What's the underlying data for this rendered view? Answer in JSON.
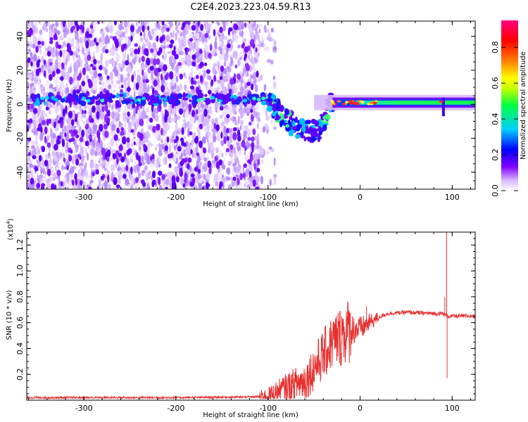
{
  "figure": {
    "title": "C2E4.2023.223.04.59.R13"
  },
  "chart_data": [
    {
      "type": "heatmap",
      "name": "spectrogram",
      "xlabel": "Height of straight line (km)",
      "ylabel": "Frequency (Hz)",
      "xlim": [
        -362,
        125
      ],
      "ylim": [
        -50,
        49
      ],
      "xticks": [
        -300,
        -200,
        -100,
        0,
        100
      ],
      "yticks": [
        -40,
        -20,
        0,
        20,
        40
      ],
      "colorbar": {
        "label": "Normalized spectral amplitude",
        "range": [
          0,
          0.95
        ],
        "ticks": [
          0.0,
          0.2,
          0.4,
          0.6,
          0.8
        ],
        "colormap": [
          "#ffffff",
          "#d8b8ff",
          "#8000ff",
          "#0000ff",
          "#00d0ff",
          "#00ff40",
          "#c8ff00",
          "#ffff00",
          "#ff8000",
          "#ff0000",
          "#ff0080"
        ]
      },
      "features": {
        "noise_region_x": [
          -362,
          -110
        ],
        "ridge_frequency_hz": 3,
        "main_band_x": [
          -5,
          125
        ],
        "main_band_frequency_hz": 1
      }
    },
    {
      "type": "line",
      "name": "snr",
      "xlabel": "Height of straight line (km)",
      "ylabel": "SNR (10 * v/v)",
      "yscale_label": "(x10",
      "yscale_exp": "4",
      "yscale_close": ")",
      "xlim": [
        -362,
        125
      ],
      "ylim": [
        0,
        13000
      ],
      "xticks": [
        -300,
        -200,
        -100,
        0,
        100
      ],
      "yticks": [
        2000,
        4000,
        6000,
        8000,
        10000,
        12000
      ],
      "ytick_labels": [
        "0.2",
        "0.4",
        "0.6",
        "0.8",
        "1.0",
        "1.2"
      ],
      "color": "#e83030",
      "profile": {
        "x": [
          -362,
          -200,
          -120,
          -100,
          -80,
          -60,
          -50,
          -40,
          -30,
          -20,
          -10,
          0,
          10,
          20,
          30,
          50,
          80,
          90,
          95,
          100,
          125
        ],
        "y": [
          200,
          200,
          250,
          300,
          1000,
          1500,
          2500,
          3500,
          4500,
          5000,
          5500,
          5500,
          6000,
          6400,
          6700,
          6800,
          6700,
          6700,
          6500,
          6500,
          6500
        ]
      },
      "spikes": [
        {
          "x": -20,
          "y": 6500
        },
        {
          "x": 7,
          "y": 7300
        },
        {
          "x": 94,
          "y": 16500
        },
        {
          "x": 94.5,
          "y": 1700
        },
        {
          "x": 92,
          "y": 8000
        }
      ]
    }
  ]
}
